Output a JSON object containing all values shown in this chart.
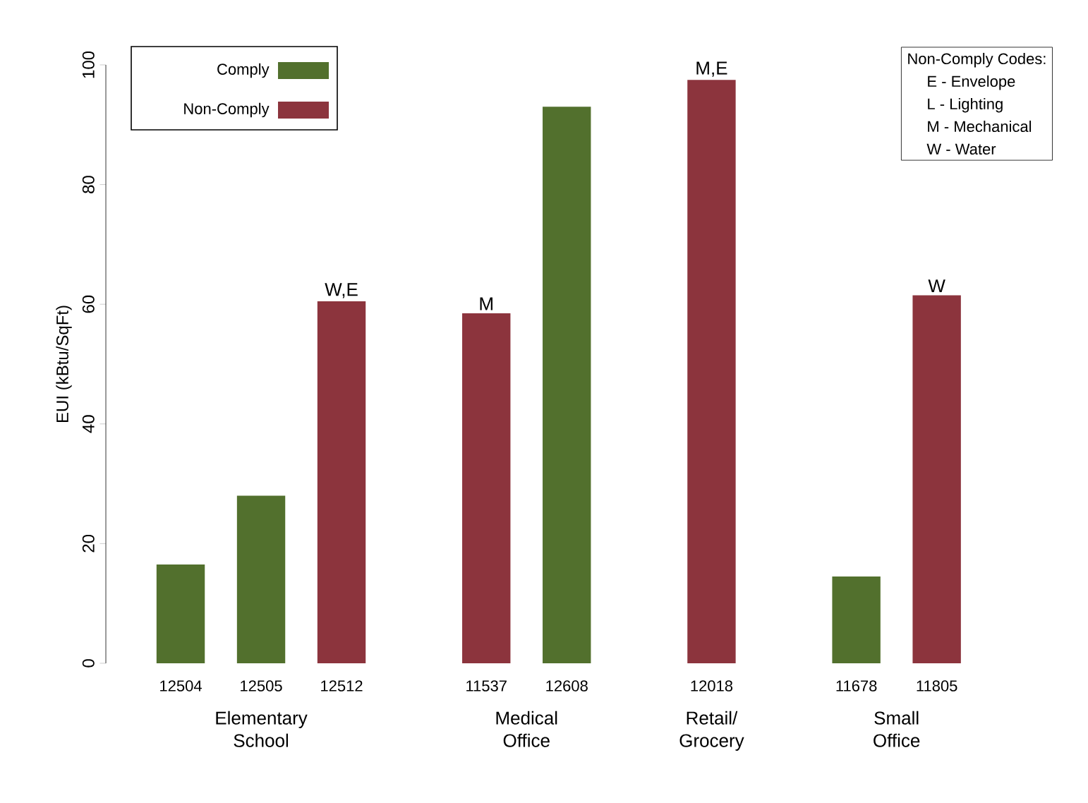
{
  "chart_data": {
    "type": "bar",
    "ylabel": "EUI (kBtu/SqFt)",
    "categories": [
      "12504",
      "12505",
      "12512",
      null,
      "11537",
      "12608",
      null,
      "12018",
      null,
      "11678",
      "11805"
    ],
    "series": [
      {
        "name": "Comply",
        "color": "#52702d",
        "values": [
          16.5,
          28,
          null,
          null,
          null,
          93,
          null,
          null,
          null,
          14.5,
          null
        ]
      },
      {
        "name": "Non-Comply",
        "color": "#8c343d",
        "values": [
          null,
          null,
          60.5,
          null,
          58.5,
          null,
          null,
          97.5,
          null,
          null,
          61.5
        ],
        "value_labels": [
          null,
          null,
          "W,E",
          null,
          "M",
          null,
          null,
          "M,E",
          null,
          null,
          "W"
        ]
      }
    ],
    "ylim": [
      0,
      100
    ],
    "yticks": [
      0,
      20,
      40,
      60,
      80,
      100
    ],
    "legend": "top left",
    "annotations": [
      "Elementary School",
      "Medical Office",
      "Retail/ Grocery",
      "Small Office",
      "Non-Comply Codes:",
      "E - Envelope",
      "L - Lighting",
      "M - Mechanical",
      "W - Water"
    ]
  }
}
